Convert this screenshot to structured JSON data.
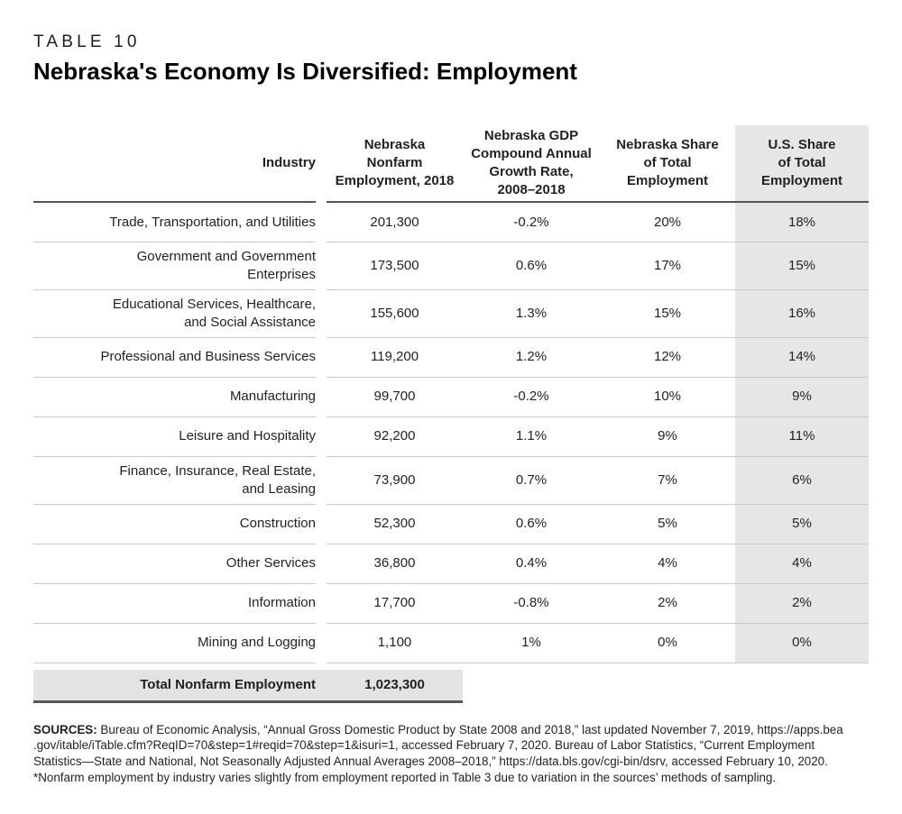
{
  "page": {
    "eyebrow": "TABLE 10",
    "title": "Nebraska's Economy Is Diversified: Employment"
  },
  "colors": {
    "shaded_column_bg": "#e6e6e7",
    "total_row_bg": "#e3e3e4",
    "dark_rule": "#55565a",
    "row_divider": "#c9c9c9",
    "text": "#231f20"
  },
  "table": {
    "headers": [
      {
        "lines": [
          "Industry"
        ]
      },
      {
        "lines": [
          "Nebraska",
          "Nonfarm",
          "Employment, 2018"
        ]
      },
      {
        "lines": [
          "Nebraska GDP",
          "Compound Annual",
          "Growth Rate,",
          "2008–2018"
        ]
      },
      {
        "lines": [
          "Nebraska Share",
          "of Total",
          "Employment"
        ]
      },
      {
        "lines": [
          "U.S. Share",
          "of Total",
          "Employment"
        ]
      }
    ],
    "rows": [
      {
        "industry": [
          "Trade, Transportation, and Utilities"
        ],
        "employment": "201,300",
        "growth": "-0.2%",
        "ne_share": "20%",
        "us_share": "18%"
      },
      {
        "industry": [
          "Government and Government",
          "Enterprises"
        ],
        "employment": "173,500",
        "growth": "0.6%",
        "ne_share": "17%",
        "us_share": "15%"
      },
      {
        "industry": [
          "Educational Services, Healthcare,",
          "and Social Assistance"
        ],
        "employment": "155,600",
        "growth": "1.3%",
        "ne_share": "15%",
        "us_share": "16%"
      },
      {
        "industry": [
          "Professional and Business Services"
        ],
        "employment": "119,200",
        "growth": "1.2%",
        "ne_share": "12%",
        "us_share": "14%"
      },
      {
        "industry": [
          "Manufacturing"
        ],
        "employment": "99,700",
        "growth": "-0.2%",
        "ne_share": "10%",
        "us_share": "9%"
      },
      {
        "industry": [
          "Leisure and Hospitality"
        ],
        "employment": "92,200",
        "growth": "1.1%",
        "ne_share": "9%",
        "us_share": "11%"
      },
      {
        "industry": [
          "Finance, Insurance, Real Estate,",
          "and Leasing"
        ],
        "employment": "73,900",
        "growth": "0.7%",
        "ne_share": "7%",
        "us_share": "6%"
      },
      {
        "industry": [
          "Construction"
        ],
        "employment": "52,300",
        "growth": "0.6%",
        "ne_share": "5%",
        "us_share": "5%"
      },
      {
        "industry": [
          "Other Services"
        ],
        "employment": "36,800",
        "growth": "0.4%",
        "ne_share": "4%",
        "us_share": "4%"
      },
      {
        "industry": [
          "Information"
        ],
        "employment": "17,700",
        "growth": "-0.8%",
        "ne_share": "2%",
        "us_share": "2%"
      },
      {
        "industry": [
          "Mining and Logging"
        ],
        "employment": "1,100",
        "growth": "1%",
        "ne_share": "0%",
        "us_share": "0%"
      }
    ],
    "total": {
      "label": "Total Nonfarm Employment",
      "value": "1,023,300"
    }
  },
  "footnote": {
    "label": "SOURCES:",
    "line1": "Bureau of Economic Analysis, “Annual Gross Domestic Product by State 2008 and 2018,” last updated November 7, 2019, https://apps.bea",
    "line2": ".gov/itable/iTable.cfm?ReqID=70&step=1#reqid=70&step=1&isuri=1, accessed February 7, 2020. Bureau of Labor Statistics, “Current Employment",
    "line3": "Statistics—State and National, Not Seasonally Adjusted Annual Averages 2008–2018,” https://data.bls.gov/cgi-bin/dsrv, accessed February 10, 2020.",
    "line4": "*Nonfarm employment by industry varies slightly from employment reported in Table 3 due to variation in the sources’ methods of sampling."
  }
}
